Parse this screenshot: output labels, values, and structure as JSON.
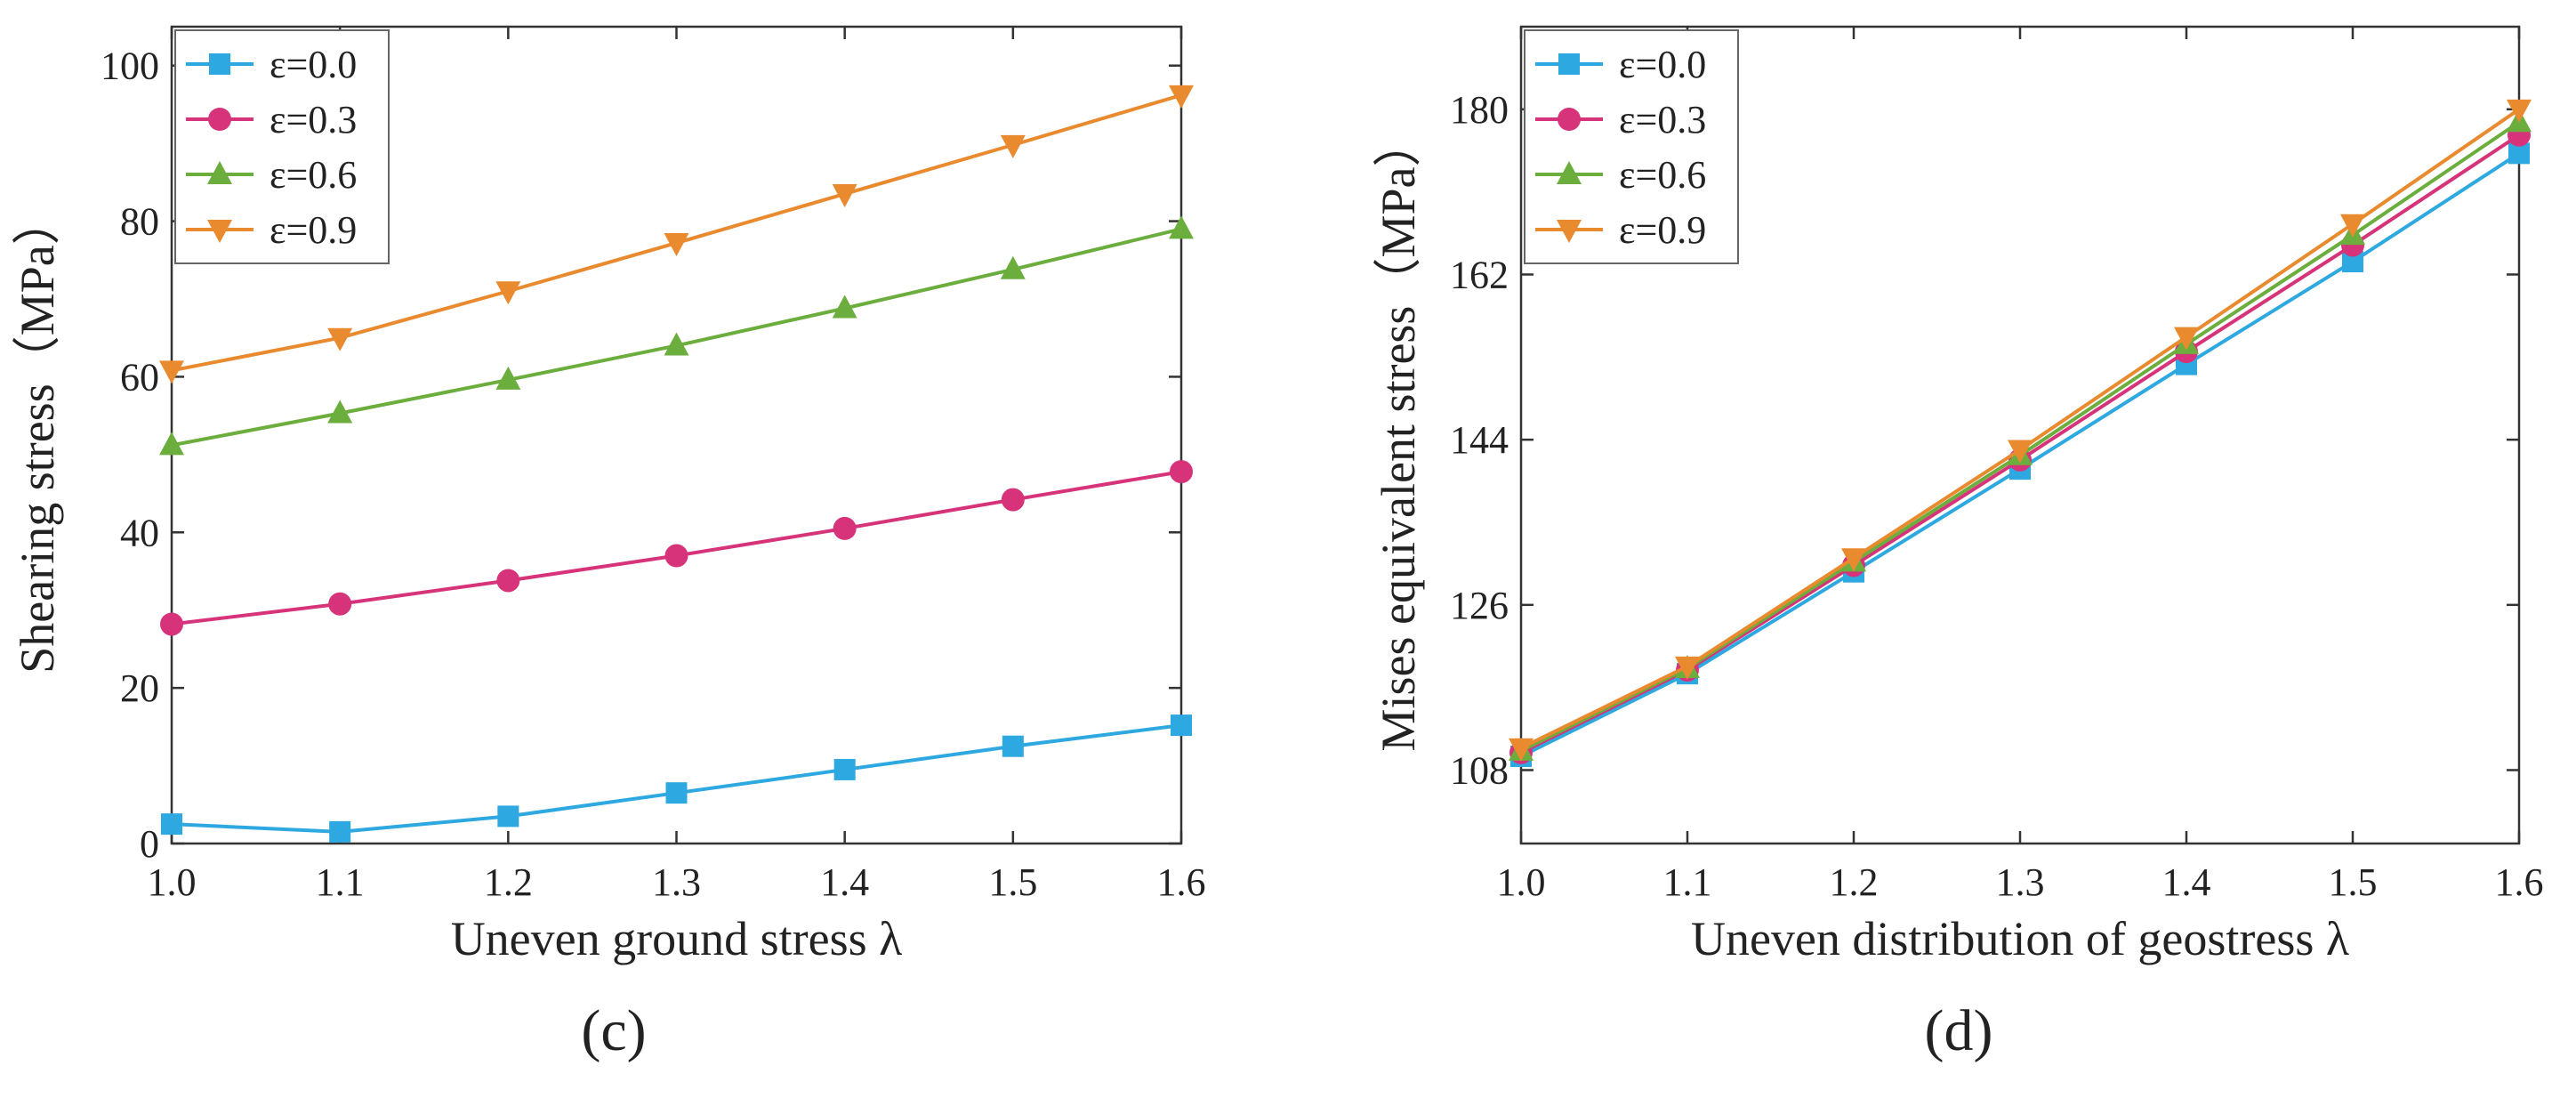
{
  "chart_data": [
    {
      "type": "line",
      "panel_label": "(c)",
      "xlabel": "Uneven ground stress  λ",
      "ylabel": "Shearing stress（MPa）",
      "x": [
        1.0,
        1.1,
        1.2,
        1.3,
        1.4,
        1.5,
        1.6
      ],
      "xlim": [
        1.0,
        1.6
      ],
      "ylim": [
        0,
        105
      ],
      "xticks": [
        1.0,
        1.1,
        1.2,
        1.3,
        1.4,
        1.5,
        1.6
      ],
      "xtick_labels": [
        "1.0",
        "1.1",
        "1.2",
        "1.3",
        "1.4",
        "1.5",
        "1.6"
      ],
      "yticks": [
        0,
        20,
        40,
        60,
        80,
        100
      ],
      "ytick_labels": [
        "0",
        "20",
        "40",
        "60",
        "80",
        "100"
      ],
      "legend_position": "top-left",
      "series": [
        {
          "name": "ε=0.0",
          "color": "#2ea8e0",
          "marker": "square",
          "values": [
            2.5,
            1.5,
            3.5,
            6.5,
            9.5,
            12.5,
            15.2
          ]
        },
        {
          "name": "ε=0.3",
          "color": "#d6337a",
          "marker": "circle",
          "values": [
            28.2,
            30.8,
            33.8,
            37.0,
            40.5,
            44.2,
            47.8
          ]
        },
        {
          "name": "ε=0.6",
          "color": "#6cae3e",
          "marker": "triangle-up",
          "values": [
            51.2,
            55.3,
            59.6,
            64.0,
            68.8,
            73.8,
            79.0
          ]
        },
        {
          "name": "ε=0.9",
          "color": "#e98a2e",
          "marker": "triangle-down",
          "values": [
            60.8,
            65.0,
            71.0,
            77.2,
            83.5,
            89.8,
            96.2
          ]
        }
      ]
    },
    {
      "type": "line",
      "panel_label": "(d)",
      "xlabel": "Uneven distribution of geostress λ",
      "ylabel": "Mises equivalent stress（MPa）",
      "x": [
        1.0,
        1.1,
        1.2,
        1.3,
        1.4,
        1.5,
        1.6
      ],
      "xlim": [
        1.0,
        1.6
      ],
      "ylim": [
        100,
        189
      ],
      "xticks": [
        1.0,
        1.1,
        1.2,
        1.3,
        1.4,
        1.5,
        1.6
      ],
      "xtick_labels": [
        "1.0",
        "1.1",
        "1.2",
        "1.3",
        "1.4",
        "1.5",
        "1.6"
      ],
      "yticks": [
        108,
        126,
        144,
        162,
        180
      ],
      "ytick_labels": [
        "108",
        "126",
        "144",
        "162",
        "180"
      ],
      "legend_position": "top-left",
      "series": [
        {
          "name": "ε=0.0",
          "color": "#2ea8e0",
          "marker": "square",
          "values": [
            109.5,
            118.5,
            129.6,
            140.8,
            152.2,
            163.4,
            175.2
          ]
        },
        {
          "name": "ε=0.3",
          "color": "#d6337a",
          "marker": "circle",
          "values": [
            109.9,
            118.9,
            130.3,
            141.8,
            153.6,
            165.2,
            177.2
          ]
        },
        {
          "name": "ε=0.6",
          "color": "#6cae3e",
          "marker": "triangle-up",
          "values": [
            110.1,
            119.1,
            130.7,
            142.3,
            154.4,
            166.3,
            178.6
          ]
        },
        {
          "name": "ε=0.9",
          "color": "#e98a2e",
          "marker": "triangle-down",
          "values": [
            110.4,
            119.3,
            131.1,
            142.9,
            155.2,
            167.5,
            180.0
          ]
        }
      ]
    }
  ]
}
